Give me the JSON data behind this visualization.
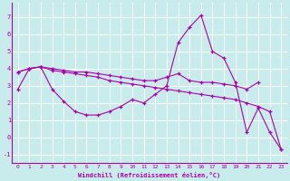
{
  "xlabel": "Windchill (Refroidissement éolien,°C)",
  "bg_color": "#c8ecec",
  "line_color": "#aa00aa",
  "grid_color": "#ffffff",
  "ylim": [
    -1.5,
    7.8
  ],
  "xlim": [
    -0.5,
    23.5
  ],
  "yticks": [
    -1,
    0,
    1,
    2,
    3,
    4,
    5,
    6,
    7
  ],
  "xticks": [
    0,
    1,
    2,
    3,
    4,
    5,
    6,
    7,
    8,
    9,
    10,
    11,
    12,
    13,
    14,
    15,
    16,
    17,
    18,
    19,
    20,
    21,
    22,
    23
  ],
  "line1_x": [
    0,
    1,
    2,
    3,
    4,
    5,
    6,
    7,
    8,
    9,
    10,
    11,
    12,
    13,
    14,
    15,
    16,
    17,
    18,
    19,
    20,
    21
  ],
  "line1_y": [
    3.8,
    4.0,
    4.1,
    4.0,
    3.9,
    3.8,
    3.8,
    3.7,
    3.6,
    3.5,
    3.4,
    3.3,
    3.3,
    3.5,
    3.7,
    3.3,
    3.2,
    3.2,
    3.1,
    3.0,
    2.8,
    3.2
  ],
  "line2_x": [
    0,
    1,
    2,
    3,
    4,
    5,
    6,
    7,
    8,
    9,
    10,
    11,
    12,
    13,
    14,
    15,
    16,
    17,
    18,
    19,
    20,
    21,
    22,
    23
  ],
  "line2_y": [
    2.8,
    4.0,
    4.1,
    2.8,
    2.1,
    1.5,
    1.3,
    1.3,
    1.5,
    1.8,
    2.2,
    2.0,
    2.5,
    3.0,
    5.5,
    6.4,
    7.1,
    5.0,
    4.6,
    3.2,
    0.3,
    1.7,
    0.3,
    -0.7
  ],
  "line3_x": [
    0,
    1,
    2,
    3,
    4,
    5,
    6,
    7,
    8,
    9,
    10,
    11,
    12,
    13,
    14,
    15,
    16,
    17,
    18,
    19,
    20,
    21,
    22,
    23
  ],
  "line3_y": [
    3.8,
    4.0,
    4.1,
    3.9,
    3.8,
    3.7,
    3.6,
    3.5,
    3.3,
    3.2,
    3.1,
    3.0,
    2.9,
    2.8,
    2.7,
    2.6,
    2.5,
    2.4,
    2.3,
    2.2,
    2.0,
    1.8,
    1.5,
    -0.7
  ]
}
